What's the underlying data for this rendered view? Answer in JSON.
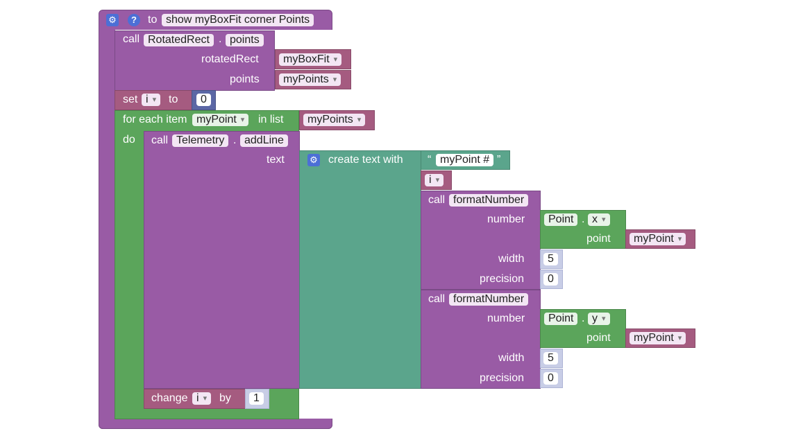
{
  "procedure": {
    "to_label": "to",
    "name": "show myBoxFit corner Points"
  },
  "call_rotated": {
    "call_label": "call",
    "object": "RotatedRect",
    "method": "points",
    "arg1_label": "rotatedRect",
    "arg1_value": "myBoxFit",
    "arg2_label": "points",
    "arg2_value": "myPoints"
  },
  "set_i": {
    "set_label": "set",
    "var": "i",
    "to_label": "to",
    "value": "0"
  },
  "for_each": {
    "label": "for each item",
    "var": "myPoint",
    "in_list_label": "in list",
    "list": "myPoints",
    "do_label": "do"
  },
  "call_telemetry": {
    "call_label": "call",
    "object": "Telemetry",
    "method": "addLine",
    "text_label": "text"
  },
  "create_text": {
    "label": "create text with",
    "open_quote": "“",
    "string": "myPoint #",
    "close_quote": "”",
    "var_i": "i"
  },
  "format1": {
    "call_label": "call",
    "name": "formatNumber",
    "number_label": "number",
    "point_class": "Point",
    "axis": "x",
    "point_label": "point",
    "point_value": "myPoint",
    "width_label": "width",
    "width_value": "5",
    "precision_label": "precision",
    "precision_value": "0"
  },
  "format2": {
    "call_label": "call",
    "name": "formatNumber",
    "number_label": "number",
    "point_class": "Point",
    "axis": "y",
    "point_label": "point",
    "point_value": "myPoint",
    "width_label": "width",
    "width_value": "5",
    "precision_label": "precision",
    "precision_value": "0"
  },
  "change_i": {
    "label": "change",
    "var": "i",
    "by_label": "by",
    "value": "1"
  },
  "dot": ".",
  "icons": {
    "gear": "gear-icon",
    "help": "help-icon"
  },
  "colors": {
    "procedure": "#995ba5",
    "loop": "#5ba55b",
    "text": "#5ba58c",
    "variable": "#a55b80",
    "math": "#5b67a5"
  }
}
